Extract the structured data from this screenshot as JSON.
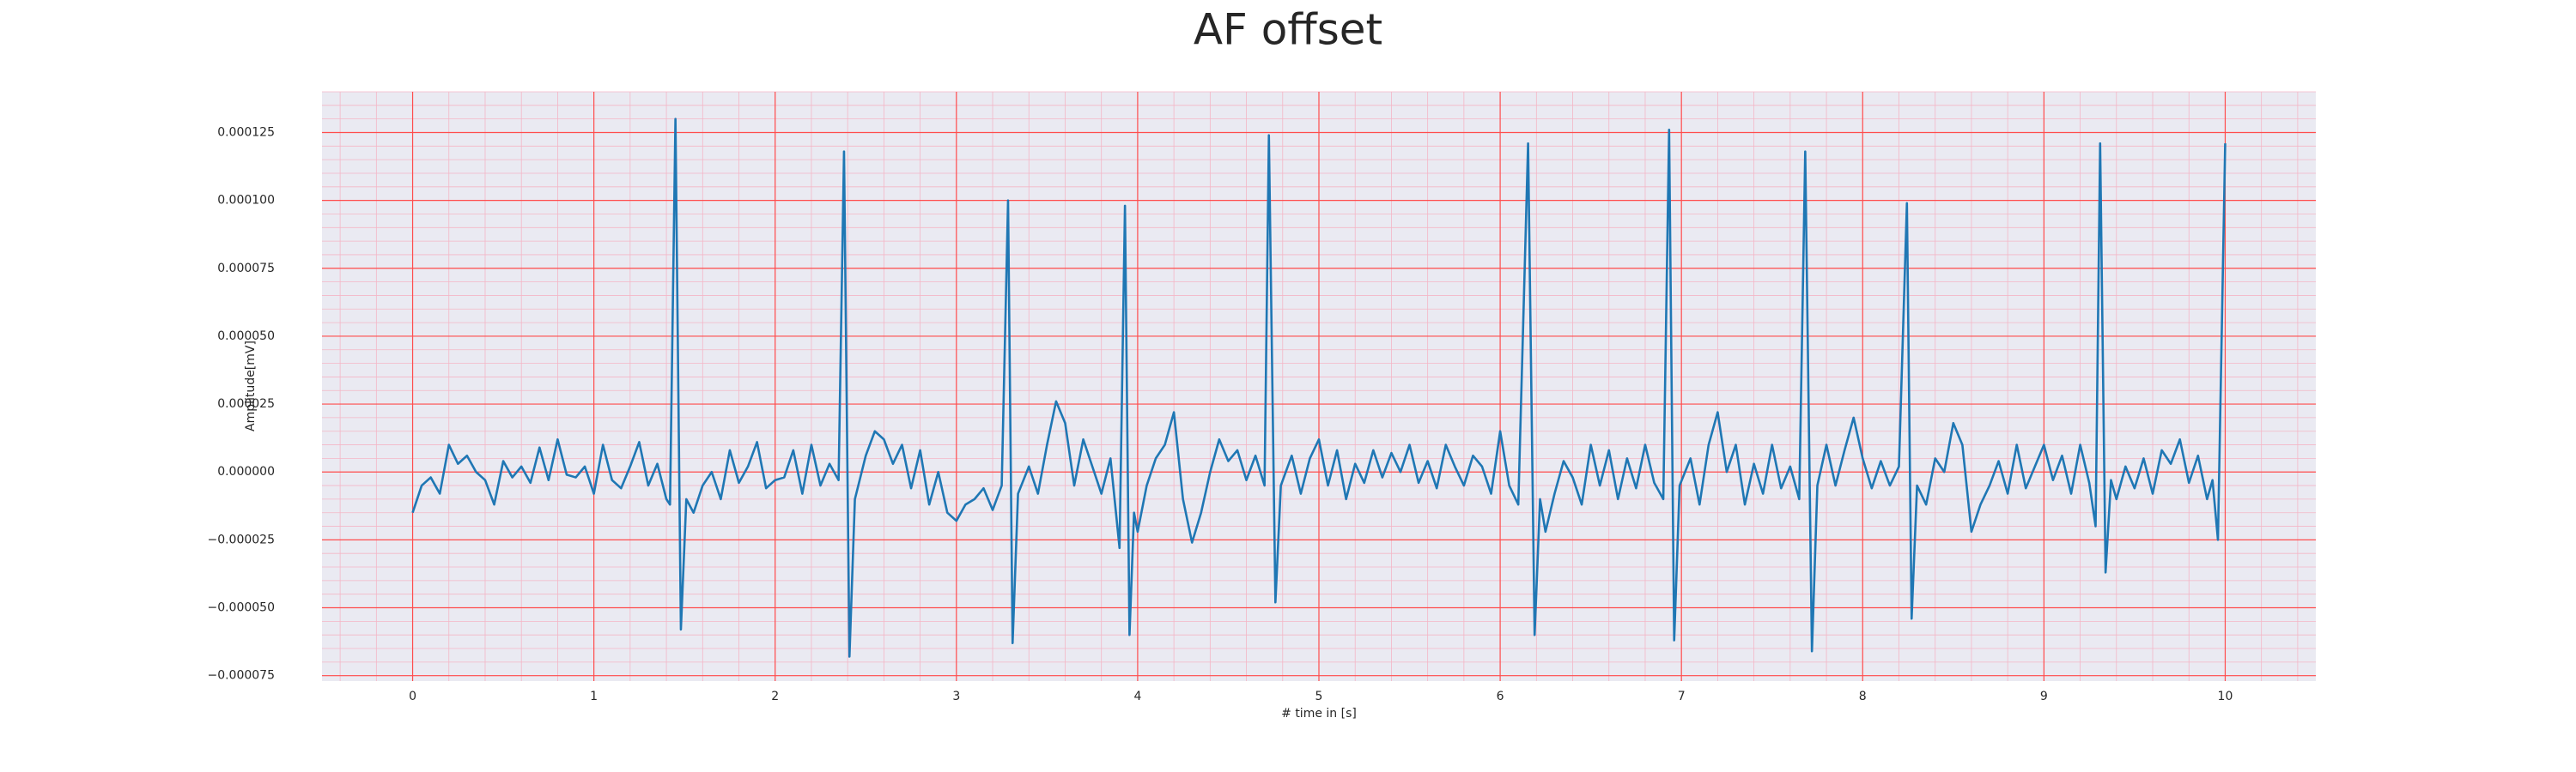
{
  "chart_data": {
    "type": "line",
    "title": "AF offset",
    "xlabel": "# time in [s]",
    "ylabel": "Amplitude[mV]",
    "color": "#1f77b4",
    "grid": true,
    "xlim": [
      -0.5,
      10.5
    ],
    "xticks": [
      0,
      1,
      2,
      3,
      4,
      5,
      6,
      7,
      8,
      9,
      10
    ],
    "ylim": [
      -7.7e-05,
      0.00014
    ],
    "yticks": [
      {
        "value": -7.5e-05,
        "label": "−0.000075"
      },
      {
        "value": -5e-05,
        "label": "−0.000050"
      },
      {
        "value": -2.5e-05,
        "label": "−0.000025"
      },
      {
        "value": 0,
        "label": "0.000000"
      },
      {
        "value": 2.5e-05,
        "label": "0.000025"
      },
      {
        "value": 5e-05,
        "label": "0.000050"
      },
      {
        "value": 7.5e-05,
        "label": "0.000075"
      },
      {
        "value": 0.0001,
        "label": "0.000100"
      },
      {
        "value": 0.000125,
        "label": "0.000125"
      }
    ],
    "x": [
      0,
      0.05,
      0.1,
      0.15,
      0.2,
      0.25,
      0.3,
      0.35,
      0.4,
      0.45,
      0.5,
      0.55,
      0.6,
      0.65,
      0.7,
      0.75,
      0.8,
      0.85,
      0.9,
      0.95,
      1,
      1.05,
      1.1,
      1.15,
      1.2,
      1.25,
      1.3,
      1.35,
      1.4,
      1.42,
      1.45,
      1.48,
      1.51,
      1.55,
      1.6,
      1.65,
      1.7,
      1.75,
      1.8,
      1.85,
      1.9,
      1.95,
      2,
      2.05,
      2.1,
      2.15,
      2.2,
      2.25,
      2.3,
      2.35,
      2.38,
      2.41,
      2.44,
      2.5,
      2.55,
      2.6,
      2.65,
      2.7,
      2.75,
      2.8,
      2.85,
      2.9,
      2.95,
      3,
      3.05,
      3.1,
      3.15,
      3.2,
      3.25,
      3.285,
      3.31,
      3.34,
      3.4,
      3.45,
      3.5,
      3.55,
      3.6,
      3.65,
      3.7,
      3.75,
      3.8,
      3.85,
      3.9,
      3.93,
      3.955,
      3.98,
      4,
      4.05,
      4.1,
      4.15,
      4.2,
      4.25,
      4.3,
      4.35,
      4.4,
      4.45,
      4.5,
      4.55,
      4.6,
      4.65,
      4.7,
      4.724,
      4.76,
      4.79,
      4.85,
      4.9,
      4.95,
      5,
      5.05,
      5.1,
      5.15,
      5.2,
      5.25,
      5.3,
      5.35,
      5.4,
      5.45,
      5.5,
      5.55,
      5.6,
      5.65,
      5.7,
      5.75,
      5.8,
      5.85,
      5.9,
      5.95,
      6,
      6.05,
      6.1,
      6.154,
      6.19,
      6.22,
      6.25,
      6.3,
      6.35,
      6.4,
      6.45,
      6.5,
      6.55,
      6.6,
      6.65,
      6.7,
      6.75,
      6.8,
      6.85,
      6.9,
      6.932,
      6.96,
      6.99,
      7.05,
      7.1,
      7.15,
      7.2,
      7.25,
      7.3,
      7.35,
      7.4,
      7.45,
      7.5,
      7.55,
      7.6,
      7.65,
      7.683,
      7.72,
      7.75,
      7.8,
      7.85,
      7.9,
      7.95,
      8,
      8.05,
      8.1,
      8.15,
      8.2,
      8.244,
      8.27,
      8.3,
      8.35,
      8.4,
      8.45,
      8.5,
      8.55,
      8.6,
      8.65,
      8.7,
      8.75,
      8.8,
      8.85,
      8.9,
      8.95,
      9,
      9.05,
      9.1,
      9.15,
      9.2,
      9.25,
      9.285,
      9.31,
      9.34,
      9.37,
      9.4,
      9.45,
      9.5,
      9.55,
      9.6,
      9.65,
      9.7,
      9.75,
      9.8,
      9.85,
      9.9,
      9.93,
      9.96,
      10
    ],
    "values": [
      -1.5e-05,
      -5e-06,
      -2e-06,
      -8e-06,
      1e-05,
      3e-06,
      6e-06,
      0,
      -3e-06,
      -1.2e-05,
      4e-06,
      -2e-06,
      2e-06,
      -4e-06,
      9e-06,
      -3e-06,
      1.2e-05,
      -1e-06,
      -2e-06,
      2e-06,
      -8e-06,
      1e-05,
      -3e-06,
      -6e-06,
      2e-06,
      1.1e-05,
      -5e-06,
      3e-06,
      -1e-05,
      -1.2e-05,
      0.00013,
      -5.8e-05,
      -1e-05,
      -1.5e-05,
      -5e-06,
      0,
      -1e-05,
      8e-06,
      -4e-06,
      2e-06,
      1.1e-05,
      -6e-06,
      -3e-06,
      -2e-06,
      8e-06,
      -8e-06,
      1e-05,
      -5e-06,
      3e-06,
      -3e-06,
      0.000118,
      -6.8e-05,
      -1e-05,
      6e-06,
      1.5e-05,
      1.2e-05,
      3e-06,
      1e-05,
      -6e-06,
      8e-06,
      -1.2e-05,
      0,
      -1.5e-05,
      -1.8e-05,
      -1.2e-05,
      -1e-05,
      -6e-06,
      -1.4e-05,
      -5e-06,
      0.0001,
      -6.3e-05,
      -8e-06,
      2e-06,
      -8e-06,
      1e-05,
      2.6e-05,
      1.8e-05,
      -5e-06,
      1.2e-05,
      2e-06,
      -8e-06,
      5e-06,
      -2.8e-05,
      9.8e-05,
      -6e-05,
      -1.5e-05,
      -2.2e-05,
      -5e-06,
      5e-06,
      1e-05,
      2.2e-05,
      -1e-05,
      -2.6e-05,
      -1.5e-05,
      0,
      1.2e-05,
      4e-06,
      8e-06,
      -3e-06,
      6e-06,
      -5e-06,
      0.000124,
      -4.8e-05,
      -5e-06,
      6e-06,
      -8e-06,
      5e-06,
      1.2e-05,
      -5e-06,
      8e-06,
      -1e-05,
      3e-06,
      -4e-06,
      8e-06,
      -2e-06,
      7e-06,
      0,
      1e-05,
      -4e-06,
      4e-06,
      -6e-06,
      1e-05,
      2e-06,
      -5e-06,
      6e-06,
      2e-06,
      -8e-06,
      1.5e-05,
      -5e-06,
      -1.2e-05,
      0.000121,
      -6e-05,
      -1e-05,
      -2.2e-05,
      -8e-06,
      4e-06,
      -2e-06,
      -1.2e-05,
      1e-05,
      -5e-06,
      8e-06,
      -1e-05,
      5e-06,
      -6e-06,
      1e-05,
      -4e-06,
      -1e-05,
      0.000126,
      -6.2e-05,
      -5e-06,
      5e-06,
      -1.2e-05,
      1e-05,
      2.2e-05,
      0,
      1e-05,
      -1.2e-05,
      3e-06,
      -8e-06,
      1e-05,
      -6e-06,
      2e-06,
      -1e-05,
      0.000118,
      -6.6e-05,
      -5e-06,
      1e-05,
      -5e-06,
      8e-06,
      2e-05,
      5e-06,
      -6e-06,
      4e-06,
      -5e-06,
      2e-06,
      9.9e-05,
      -5.4e-05,
      -5e-06,
      -1.2e-05,
      5e-06,
      0,
      1.8e-05,
      1e-05,
      -2.2e-05,
      -1.2e-05,
      -5e-06,
      4e-06,
      -8e-06,
      1e-05,
      -6e-06,
      2e-06,
      1e-05,
      -3e-06,
      6e-06,
      -8e-06,
      1e-05,
      -4e-06,
      -2e-05,
      0.000121,
      -3.7e-05,
      -3e-06,
      -1e-05,
      2e-06,
      -6e-06,
      5e-06,
      -8e-06,
      8e-06,
      3e-06,
      1.2e-05,
      -4e-06,
      6e-06,
      -1e-05,
      -3e-06,
      -2.5e-05,
      0.000121
    ]
  }
}
